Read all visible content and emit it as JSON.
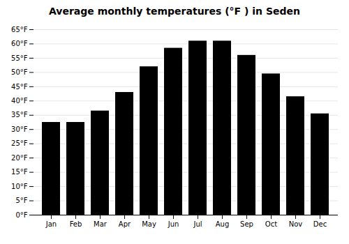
{
  "chart_data": {
    "type": "bar",
    "title": "Average monthly temperatures (°F ) in Seden",
    "categories": [
      "Jan",
      "Feb",
      "Mar",
      "Apr",
      "May",
      "Jun",
      "Jul",
      "Aug",
      "Sep",
      "Oct",
      "Nov",
      "Dec"
    ],
    "values": [
      32.5,
      32.5,
      36.5,
      43,
      52,
      58.5,
      61,
      61,
      56,
      49.5,
      41.5,
      35.5
    ],
    "ylim": [
      0,
      65
    ],
    "yticks": [
      {
        "value": 0,
        "label": "0°F"
      },
      {
        "value": 5,
        "label": "5°F"
      },
      {
        "value": 10,
        "label": "10°F"
      },
      {
        "value": 15,
        "label": "15°F"
      },
      {
        "value": 20,
        "label": "20°F"
      },
      {
        "value": 25,
        "label": "25°F"
      },
      {
        "value": 30,
        "label": "30°F"
      },
      {
        "value": 35,
        "label": "35°F"
      },
      {
        "value": 40,
        "label": "40°F"
      },
      {
        "value": 45,
        "label": "45°F"
      },
      {
        "value": 50,
        "label": "50°F"
      },
      {
        "value": 55,
        "label": "55°F"
      },
      {
        "value": 60,
        "label": "60°F"
      },
      {
        "value": 65,
        "label": "65°F"
      }
    ],
    "grid": true
  }
}
